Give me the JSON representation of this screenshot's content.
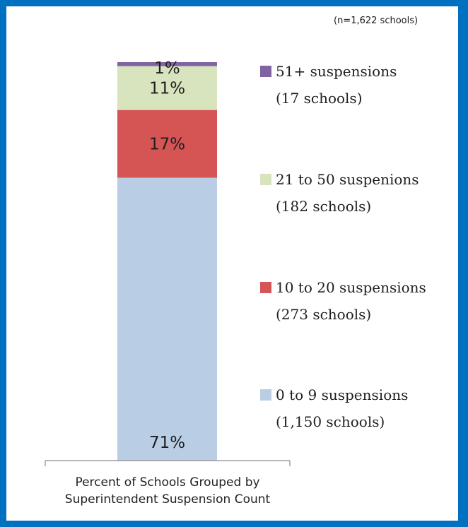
{
  "note": "(n=1,622 schools)",
  "chart_data": {
    "type": "bar",
    "stacked": true,
    "orientation": "vertical",
    "categories": [
      "Percent of Schools Grouped by Superintendent Suspension Count"
    ],
    "xlabel_lines": [
      "Percent of Schools Grouped by",
      "Superintendent Suspension Count"
    ],
    "ylim": [
      0,
      100
    ],
    "grid": false,
    "legend_position": "right",
    "series": [
      {
        "name": "0 to 9 suspensions",
        "detail": "(1,150 schools)",
        "value": 71,
        "label": "71%",
        "color": "#B9CDE5"
      },
      {
        "name": "10 to 20 suspensions",
        "detail": "(273 schools)",
        "value": 17,
        "label": "17%",
        "color": "#D55454"
      },
      {
        "name": "21 to 50 suspenions",
        "detail": "(182 schools)",
        "value": 11,
        "label": "11%",
        "color": "#D7E4BD"
      },
      {
        "name": "51+ suspensions",
        "detail": "(17  schools)",
        "value": 1,
        "label": "1%",
        "color": "#8064A2"
      }
    ]
  }
}
